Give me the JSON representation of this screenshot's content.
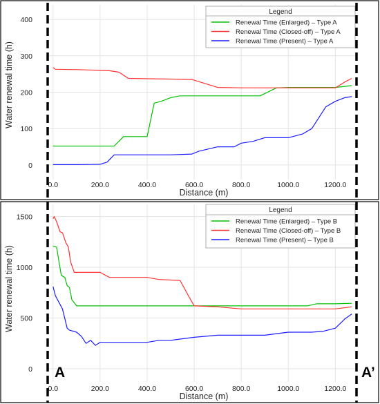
{
  "chart_data": [
    {
      "type": "line",
      "xlabel": "Distance (m)",
      "ylabel": "Water renewal time (h)",
      "xlim": [
        -20,
        1290
      ],
      "ylim": [
        -40,
        440
      ],
      "xticks": [
        0,
        200,
        400,
        600,
        800,
        1000,
        1200
      ],
      "xtick_labels": [
        "0.0",
        "200.0",
        "400.0",
        "600.0",
        "800.0",
        "1000.0",
        "1200.0"
      ],
      "yticks": [
        0,
        100,
        200,
        300,
        400
      ],
      "ytick_labels": [
        "0",
        "100",
        "200",
        "300",
        "400"
      ],
      "grid": true,
      "legend": {
        "title": "Legend",
        "placement": "top-right"
      },
      "series": [
        {
          "name": "Renewal Time (Enlarged) – Type A",
          "color": "#00c000",
          "x": [
            0,
            100,
            200,
            260,
            300,
            400,
            430,
            460,
            500,
            540,
            600,
            700,
            800,
            880,
            950,
            1000,
            1100,
            1200,
            1270
          ],
          "y": [
            52,
            52,
            52,
            52,
            78,
            78,
            170,
            175,
            185,
            190,
            190,
            190,
            190,
            190,
            212,
            213,
            213,
            213,
            218
          ]
        },
        {
          "name": "Renewal Time (Closed-off) – Type A",
          "color": "#ff3030",
          "x": [
            0,
            10,
            100,
            150,
            200,
            240,
            280,
            320,
            400,
            500,
            590,
            640,
            700,
            800,
            900,
            1000,
            1100,
            1200,
            1240,
            1270
          ],
          "y": [
            268,
            263,
            262,
            261,
            260,
            259,
            255,
            238,
            237,
            236,
            235,
            225,
            213,
            212,
            212,
            212,
            212,
            212,
            228,
            238
          ]
        },
        {
          "name": "Renewal Time (Present) – Type A",
          "color": "#1a1aff",
          "x": [
            0,
            100,
            200,
            230,
            260,
            400,
            500,
            590,
            620,
            700,
            770,
            800,
            850,
            900,
            1000,
            1060,
            1100,
            1160,
            1200,
            1240,
            1270
          ],
          "y": [
            1,
            1,
            2,
            8,
            28,
            28,
            28,
            30,
            38,
            50,
            50,
            60,
            65,
            75,
            75,
            85,
            100,
            160,
            175,
            185,
            188
          ]
        }
      ]
    },
    {
      "type": "line",
      "xlabel": "Distance (m)",
      "ylabel": "Water renewal time (h)",
      "xlim": [
        -20,
        1290
      ],
      "ylim": [
        -130,
        1620
      ],
      "xticks": [
        0,
        200,
        400,
        600,
        800,
        1000,
        1200
      ],
      "xtick_labels": [
        "0.0",
        "200.0",
        "400.0",
        "600.0",
        "800.0",
        "1000.0",
        "1200.0"
      ],
      "yticks": [
        0,
        500,
        1000,
        1500
      ],
      "ytick_labels": [
        "0",
        "500",
        "1000",
        "1500"
      ],
      "grid": true,
      "legend": {
        "title": "Legend",
        "placement": "top-right"
      },
      "series": [
        {
          "name": "Renewal Time (Enlarged) – Type B",
          "color": "#00c000",
          "x": [
            0,
            15,
            35,
            50,
            60,
            70,
            80,
            100,
            200,
            300,
            400,
            500,
            600,
            700,
            800,
            900,
            1000,
            1080,
            1120,
            1200,
            1270
          ],
          "y": [
            1210,
            1200,
            920,
            900,
            820,
            800,
            680,
            620,
            620,
            620,
            620,
            620,
            620,
            620,
            620,
            620,
            620,
            620,
            640,
            640,
            645
          ]
        },
        {
          "name": "Renewal Time (Closed-off) – Type B",
          "color": "#ff3030",
          "x": [
            0,
            5,
            15,
            30,
            40,
            55,
            65,
            75,
            90,
            200,
            240,
            400,
            450,
            540,
            580,
            600,
            700,
            800,
            900,
            1000,
            1100,
            1200,
            1270
          ],
          "y": [
            1480,
            1500,
            1450,
            1350,
            1340,
            1240,
            1200,
            1050,
            950,
            950,
            900,
            900,
            880,
            870,
            700,
            620,
            610,
            590,
            590,
            590,
            590,
            590,
            610
          ]
        },
        {
          "name": "Renewal Time (Present) – Type B",
          "color": "#1a1aff",
          "x": [
            0,
            10,
            40,
            60,
            70,
            100,
            120,
            140,
            160,
            180,
            200,
            300,
            400,
            450,
            500,
            600,
            700,
            800,
            900,
            1000,
            1100,
            1150,
            1200,
            1240,
            1270
          ],
          "y": [
            810,
            720,
            590,
            400,
            380,
            360,
            320,
            250,
            280,
            230,
            260,
            260,
            260,
            280,
            280,
            310,
            330,
            330,
            330,
            360,
            360,
            370,
            400,
            490,
            540
          ]
        }
      ]
    }
  ],
  "section_labels": {
    "start": "A",
    "end": "A’"
  }
}
